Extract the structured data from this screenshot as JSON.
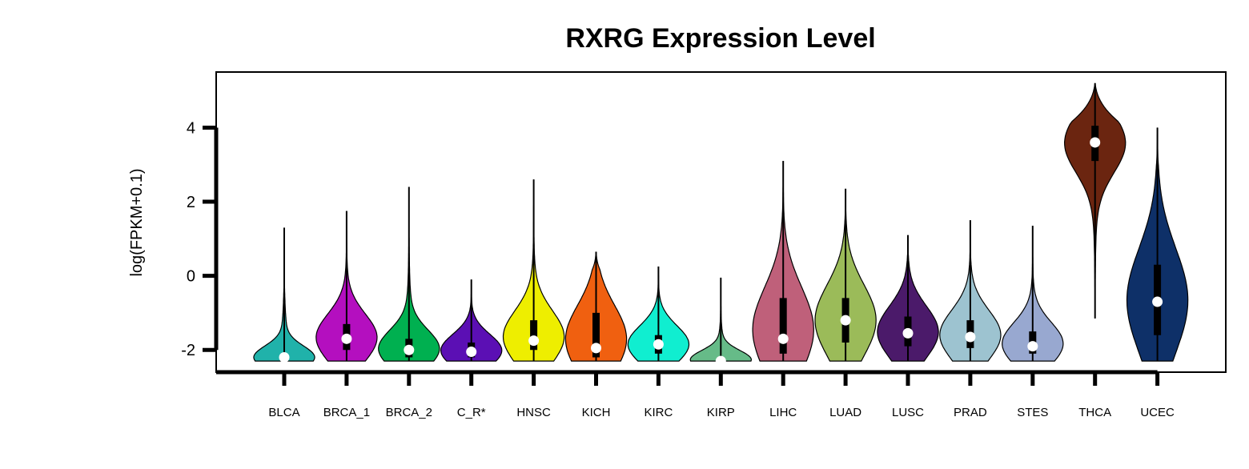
{
  "chart_data": {
    "type": "violin",
    "title": "RXRG Expression Level",
    "ylabel": "log(FPKM+0.1)",
    "xlabel": "",
    "ylim": [
      -2.6,
      5.5
    ],
    "yticks": [
      -2,
      0,
      2,
      4
    ],
    "grid": false,
    "legend": "none",
    "categories": [
      "BLCA",
      "BRCA_1",
      "BRCA_2",
      "C_R*",
      "HNSC",
      "KICH",
      "KIRC",
      "KIRP",
      "LIHC",
      "LUAD",
      "LUSC",
      "PRAD",
      "STES",
      "THCA",
      "UCEC"
    ],
    "series": [
      {
        "category": "BLCA",
        "color": "#20B2AA",
        "min": -2.3,
        "max": 1.3,
        "q1": -2.3,
        "q3": -2.1,
        "median": -2.2,
        "whisker_low": -2.3,
        "whisker_high": -1.4
      },
      {
        "category": "BRCA_1",
        "color": "#B40FBF",
        "min": -2.3,
        "max": 1.75,
        "q1": -2.0,
        "q3": -1.3,
        "median": -1.7,
        "whisker_low": -2.3,
        "whisker_high": 0.3
      },
      {
        "category": "BRCA_2",
        "color": "#00B050",
        "min": -2.3,
        "max": 2.4,
        "q1": -2.2,
        "q3": -1.7,
        "median": -2.0,
        "whisker_low": -2.3,
        "whisker_high": -0.8
      },
      {
        "category": "C_R*",
        "color": "#5B0FB4",
        "min": -2.3,
        "max": -0.1,
        "q1": -2.2,
        "q3": -1.8,
        "median": -2.05,
        "whisker_low": -2.3,
        "whisker_high": -1.2
      },
      {
        "category": "HNSC",
        "color": "#EEEE00",
        "min": -2.3,
        "max": 2.6,
        "q1": -2.0,
        "q3": -1.2,
        "median": -1.75,
        "whisker_low": -2.3,
        "whisker_high": 0.3
      },
      {
        "category": "KICH",
        "color": "#F06010",
        "min": -2.3,
        "max": 0.65,
        "q1": -2.2,
        "q3": -1.0,
        "median": -1.95,
        "whisker_low": -2.3,
        "whisker_high": 0.3
      },
      {
        "category": "KIRC",
        "color": "#10EED0",
        "min": -2.3,
        "max": 0.25,
        "q1": -2.1,
        "q3": -1.6,
        "median": -1.85,
        "whisker_low": -2.3,
        "whisker_high": -0.9
      },
      {
        "category": "KIRP",
        "color": "#66BB88",
        "min": -2.3,
        "max": -0.05,
        "q1": -2.3,
        "q3": -2.2,
        "median": -2.3,
        "whisker_low": -2.3,
        "whisker_high": -1.4
      },
      {
        "category": "LIHC",
        "color": "#BF607A",
        "min": -2.3,
        "max": 3.1,
        "q1": -2.1,
        "q3": -0.6,
        "median": -1.7,
        "whisker_low": -2.3,
        "whisker_high": 1.4
      },
      {
        "category": "LUAD",
        "color": "#9BBB59",
        "min": -2.3,
        "max": 2.35,
        "q1": -1.8,
        "q3": -0.6,
        "median": -1.2,
        "whisker_low": -2.3,
        "whisker_high": 1.0
      },
      {
        "category": "LUSC",
        "color": "#4B1A6A",
        "min": -2.3,
        "max": 1.1,
        "q1": -1.9,
        "q3": -1.1,
        "median": -1.55,
        "whisker_low": -2.3,
        "whisker_high": 0.1
      },
      {
        "category": "PRAD",
        "color": "#9DC3D0",
        "min": -2.3,
        "max": 1.5,
        "q1": -1.95,
        "q3": -1.2,
        "median": -1.65,
        "whisker_low": -2.3,
        "whisker_high": -0.1
      },
      {
        "category": "STES",
        "color": "#98A8D0",
        "min": -2.3,
        "max": 1.35,
        "q1": -2.1,
        "q3": -1.5,
        "median": -1.9,
        "whisker_low": -2.3,
        "whisker_high": -0.4
      },
      {
        "category": "THCA",
        "color": "#6B2510",
        "min": -1.15,
        "max": 5.2,
        "q1": 3.1,
        "q3": 4.05,
        "median": 3.6,
        "whisker_low": 1.4,
        "whisker_high": 4.9
      },
      {
        "category": "UCEC",
        "color": "#0E3068",
        "min": -2.3,
        "max": 4.0,
        "q1": -1.6,
        "q3": 0.3,
        "median": -0.7,
        "whisker_low": -2.3,
        "whisker_high": 3.2
      }
    ]
  }
}
